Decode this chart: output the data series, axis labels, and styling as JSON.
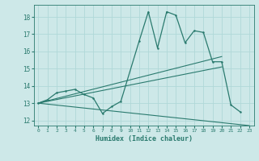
{
  "xlabel": "Humidex (Indice chaleur)",
  "xlim": [
    -0.5,
    23.5
  ],
  "ylim": [
    11.7,
    18.7
  ],
  "yticks": [
    12,
    13,
    14,
    15,
    16,
    17,
    18
  ],
  "xticks": [
    0,
    1,
    2,
    3,
    4,
    5,
    6,
    7,
    8,
    9,
    10,
    11,
    12,
    13,
    14,
    15,
    16,
    17,
    18,
    19,
    20,
    21,
    22,
    23
  ],
  "bg_color": "#cde8e8",
  "grid_color": "#b0d8d8",
  "line_color": "#2a7a6e",
  "main_line": {
    "x": [
      0,
      1,
      2,
      3,
      4,
      5,
      6,
      7,
      8,
      9,
      11,
      12,
      13,
      14,
      15,
      16,
      17,
      18,
      19,
      20,
      21,
      22
    ],
    "y": [
      13.0,
      13.2,
      13.6,
      13.7,
      13.8,
      13.5,
      13.3,
      12.4,
      12.8,
      13.1,
      16.6,
      18.3,
      16.2,
      18.3,
      18.1,
      16.5,
      17.2,
      17.1,
      15.4,
      15.4,
      12.9,
      12.5
    ]
  },
  "fan_lines": [
    {
      "x": [
        0,
        20
      ],
      "y": [
        13.0,
        15.7
      ]
    },
    {
      "x": [
        0,
        20
      ],
      "y": [
        13.0,
        15.1
      ]
    },
    {
      "x": [
        0,
        23
      ],
      "y": [
        13.0,
        11.7
      ]
    }
  ]
}
